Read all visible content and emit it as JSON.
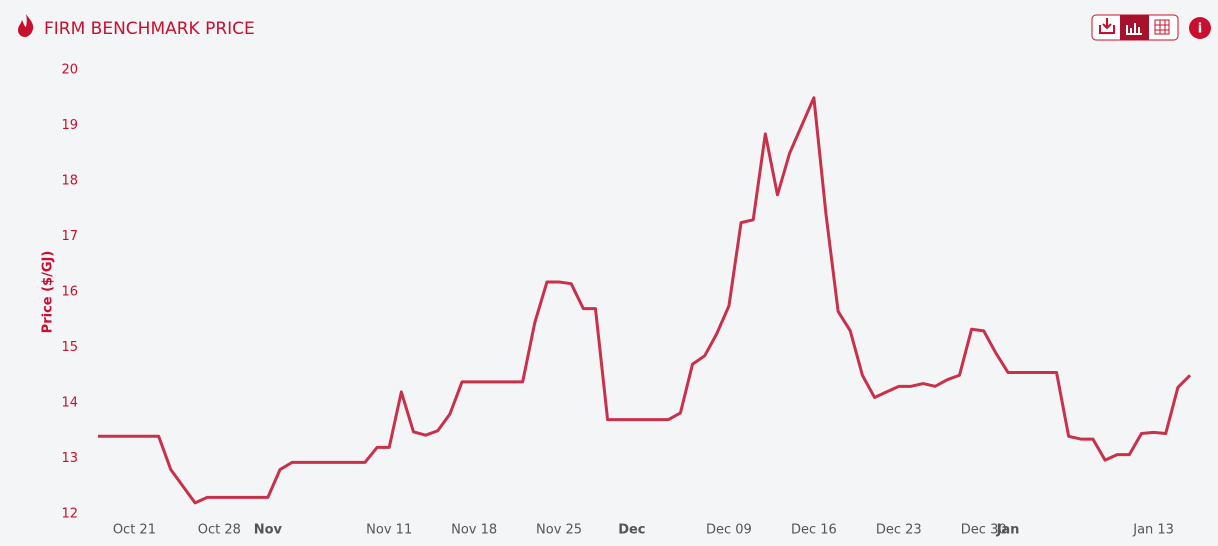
{
  "chart_data": {
    "type": "line",
    "title": "FIRM BENCHMARK PRICE",
    "ylabel": "Price ($/GJ)",
    "color": "#c9304a",
    "x": [
      "Oct 18",
      "Oct 19",
      "Oct 20",
      "Oct 21",
      "Oct 22",
      "Oct 23",
      "Oct 24",
      "Oct 25",
      "Oct 26",
      "Oct 27",
      "Oct 28",
      "Oct 29",
      "Oct 30",
      "Oct 31",
      "Nov 01",
      "Nov 02",
      "Nov 03",
      "Nov 04",
      "Nov 05",
      "Nov 06",
      "Nov 07",
      "Nov 08",
      "Nov 09",
      "Nov 10",
      "Nov 11",
      "Nov 12",
      "Nov 13",
      "Nov 14",
      "Nov 15",
      "Nov 16",
      "Nov 17",
      "Nov 18",
      "Nov 19",
      "Nov 20",
      "Nov 21",
      "Nov 22",
      "Nov 23",
      "Nov 24",
      "Nov 25",
      "Nov 26",
      "Nov 27",
      "Nov 28",
      "Nov 29",
      "Nov 30",
      "Dec 01",
      "Dec 02",
      "Dec 03",
      "Dec 04",
      "Dec 05",
      "Dec 06",
      "Dec 07",
      "Dec 08",
      "Dec 09",
      "Dec 10",
      "Dec 11",
      "Dec 12",
      "Dec 13",
      "Dec 14",
      "Dec 15",
      "Dec 16",
      "Dec 17",
      "Dec 18",
      "Dec 19",
      "Dec 20",
      "Dec 21",
      "Dec 22",
      "Dec 23",
      "Dec 24",
      "Dec 25",
      "Dec 26",
      "Dec 27",
      "Dec 28",
      "Dec 29",
      "Dec 30",
      "Dec 31",
      "Jan 01",
      "Jan 02",
      "Jan 03",
      "Jan 04",
      "Jan 05",
      "Jan 06",
      "Jan 07",
      "Jan 08",
      "Jan 09",
      "Jan 10",
      "Jan 11",
      "Jan 12",
      "Jan 13",
      "Jan 14",
      "Jan 15",
      "Jan 16"
    ],
    "values": [
      13.4,
      13.4,
      13.4,
      13.4,
      13.4,
      13.4,
      12.8,
      12.5,
      12.2,
      12.3,
      12.3,
      12.3,
      12.3,
      12.3,
      12.3,
      12.8,
      12.93,
      12.93,
      12.93,
      12.93,
      12.93,
      12.93,
      12.93,
      13.2,
      13.2,
      14.2,
      13.48,
      13.42,
      13.5,
      13.8,
      14.38,
      14.38,
      14.38,
      14.38,
      14.38,
      14.38,
      15.45,
      16.18,
      16.18,
      16.15,
      15.7,
      15.7,
      13.7,
      13.7,
      13.7,
      13.7,
      13.7,
      13.7,
      13.82,
      14.7,
      14.85,
      15.25,
      15.75,
      17.25,
      17.3,
      18.85,
      17.75,
      18.5,
      19.0,
      19.5,
      17.4,
      15.65,
      15.3,
      14.5,
      14.1,
      14.2,
      14.3,
      14.3,
      14.35,
      14.3,
      14.42,
      14.5,
      15.33,
      15.3,
      14.9,
      14.55,
      14.55,
      14.55,
      14.55,
      14.55,
      13.4,
      13.35,
      13.35,
      12.97,
      13.07,
      13.07,
      13.45,
      13.47,
      13.45,
      14.28,
      14.5
    ],
    "ylim": [
      12,
      20
    ],
    "yticks": [
      12,
      13,
      14,
      15,
      16,
      17,
      18,
      19,
      20
    ],
    "xticks": [
      "Oct 21",
      "Oct 28",
      {
        "value": "Nov 01",
        "label": "Nov"
      },
      "Nov 11",
      "Nov 18",
      "Nov 25",
      {
        "value": "Dec 01",
        "label": "Dec"
      },
      "Dec 09",
      "Dec 16",
      "Dec 23",
      "Dec 30",
      {
        "value": "Jan 01",
        "label": "Jan"
      },
      "Jan 13"
    ]
  }
}
